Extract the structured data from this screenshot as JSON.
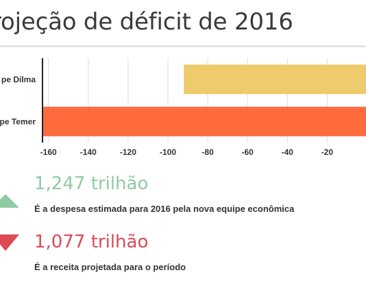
{
  "title": "rojeção de déficit de 2016",
  "chart_data": {
    "type": "bar",
    "orientation": "horizontal",
    "categories": [
      "pe Dilma",
      "pe Temer"
    ],
    "values": [
      -92,
      -170
    ],
    "bar_colors": [
      "#eecb6c",
      "#ff6b3d"
    ],
    "x_ticks": [
      -160,
      -140,
      -120,
      -100,
      -80,
      -60,
      -40,
      -20
    ],
    "xlim": [
      -163,
      -0.5
    ],
    "grid": true
  },
  "stats": [
    {
      "value": "1,247 trilhão",
      "description": "É a despesa estimada para 2016 pela nova equipe econômica",
      "color": "#8fcaa4",
      "icon": "triangle-up-icon"
    },
    {
      "value": "1,077 trilhão",
      "description": "É a receita projetada para o período",
      "color": "#dc4a55",
      "icon": "triangle-down-icon"
    }
  ]
}
